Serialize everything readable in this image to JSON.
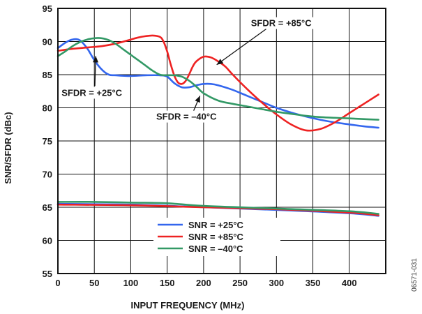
{
  "chart_data": {
    "type": "line",
    "xlabel": "INPUT FREQUENCY (MHz)",
    "ylabel": "SNR/SFDR (dBc)",
    "xlim": [
      0,
      450
    ],
    "ylim": [
      55,
      95
    ],
    "xticks": [
      0,
      50,
      100,
      150,
      200,
      250,
      300,
      350,
      400
    ],
    "yticks": [
      55,
      60,
      65,
      70,
      75,
      80,
      85,
      90,
      95
    ],
    "grid": true,
    "legend": "bottom-center",
    "figure_id": "06571-031",
    "annotations": [
      {
        "text": "SFDR = +85°C",
        "x": 265,
        "y": 92.3,
        "arrow_to": [
          218,
          86.5
        ]
      },
      {
        "text": "SFDR = +25°C",
        "x": 5,
        "y": 81.8,
        "arrow_to": [
          52,
          87.8
        ]
      },
      {
        "text": "SFDR = –40°C",
        "x": 135,
        "y": 78.2,
        "arrow_to": [
          195,
          81.8
        ]
      }
    ],
    "series": [
      {
        "color": "#3366ee",
        "x": [
          0,
          10,
          20,
          30,
          40,
          50,
          60,
          70,
          80,
          100,
          120,
          140,
          150,
          160,
          170,
          180,
          190,
          200,
          210,
          220,
          240,
          260,
          280,
          300,
          320,
          340,
          360,
          380,
          400,
          420,
          440
        ],
        "y": [
          89.0,
          89.8,
          90.3,
          90.2,
          89.0,
          87.2,
          85.8,
          85.0,
          84.9,
          84.8,
          84.9,
          84.9,
          84.7,
          83.7,
          83.1,
          83.1,
          83.4,
          83.6,
          83.6,
          83.4,
          82.7,
          81.8,
          80.9,
          80.0,
          79.3,
          78.7,
          78.2,
          77.8,
          77.5,
          77.2,
          77.0
        ]
      },
      {
        "color": "#ee2222",
        "x": [
          0,
          20,
          40,
          60,
          80,
          100,
          110,
          120,
          130,
          140,
          145,
          150,
          155,
          160,
          165,
          170,
          175,
          180,
          185,
          190,
          200,
          210,
          220,
          230,
          240,
          260,
          280,
          300,
          320,
          340,
          360,
          380,
          400,
          420,
          440
        ],
        "y": [
          88.6,
          88.9,
          89.1,
          89.3,
          89.7,
          90.3,
          90.6,
          90.8,
          90.9,
          90.7,
          90.0,
          88.5,
          86.5,
          84.8,
          83.8,
          83.6,
          84.0,
          85.0,
          86.2,
          87.0,
          87.7,
          87.6,
          87.0,
          86.2,
          85.0,
          82.8,
          80.8,
          79.0,
          77.5,
          76.6,
          76.8,
          77.8,
          79.2,
          80.6,
          82.0
        ]
      },
      {
        "color": "#339966",
        "x": [
          0,
          10,
          20,
          30,
          40,
          50,
          60,
          70,
          80,
          90,
          100,
          110,
          120,
          130,
          140,
          150,
          160,
          170,
          180,
          190,
          200,
          220,
          240,
          260,
          280,
          300,
          320,
          340,
          360,
          380,
          400,
          420,
          440
        ],
        "y": [
          87.8,
          88.5,
          89.3,
          89.9,
          90.3,
          90.5,
          90.5,
          90.2,
          89.6,
          88.8,
          88.0,
          87.2,
          86.4,
          85.6,
          85.0,
          84.9,
          84.9,
          84.7,
          84.1,
          83.2,
          82.2,
          81.1,
          80.6,
          80.2,
          79.8,
          79.4,
          79.1,
          78.8,
          78.6,
          78.5,
          78.4,
          78.3,
          78.2
        ]
      },
      {
        "name": "SNR = +25°C",
        "color": "#3366ee",
        "x": [
          0,
          100,
          200,
          300,
          400,
          440
        ],
        "y": [
          65.5,
          65.4,
          65.0,
          64.6,
          64.1,
          63.7
        ]
      },
      {
        "name": "SNR = +85°C",
        "color": "#ee2222",
        "x": [
          0,
          100,
          200,
          300,
          400,
          440
        ],
        "y": [
          65.4,
          65.3,
          65.0,
          64.7,
          64.2,
          63.8
        ]
      },
      {
        "name": "SNR = –40°C",
        "color": "#339966",
        "x": [
          0,
          50,
          100,
          150,
          200,
          300,
          400,
          440
        ],
        "y": [
          65.8,
          65.8,
          65.7,
          65.6,
          65.2,
          64.8,
          64.4,
          64.0
        ]
      }
    ]
  }
}
